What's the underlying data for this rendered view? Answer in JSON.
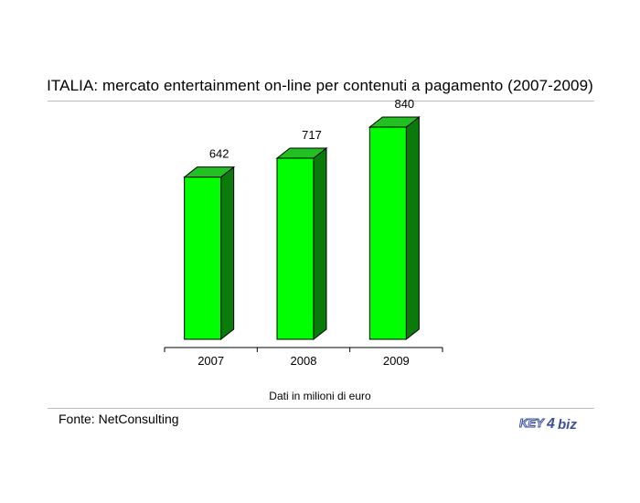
{
  "title": "ITALIA: mercato entertainment on-line per contenuti a pagamento (2007-2009)",
  "unit_note": "Dati in milioni di euro",
  "source": "Fonte: NetConsulting",
  "logo": {
    "text_left": "KEY",
    "text_mid": "4",
    "text_right": "biz",
    "color": "#3a4fa0"
  },
  "colors": {
    "bar_front": "#00ff00",
    "bar_top": "#22c022",
    "bar_side": "#0a7a0a",
    "outline": "#000000"
  },
  "chart_data": {
    "type": "bar",
    "categories": [
      "2007",
      "2008",
      "2009"
    ],
    "values": [
      642,
      717,
      840
    ],
    "ylim": [
      0,
      900
    ]
  }
}
